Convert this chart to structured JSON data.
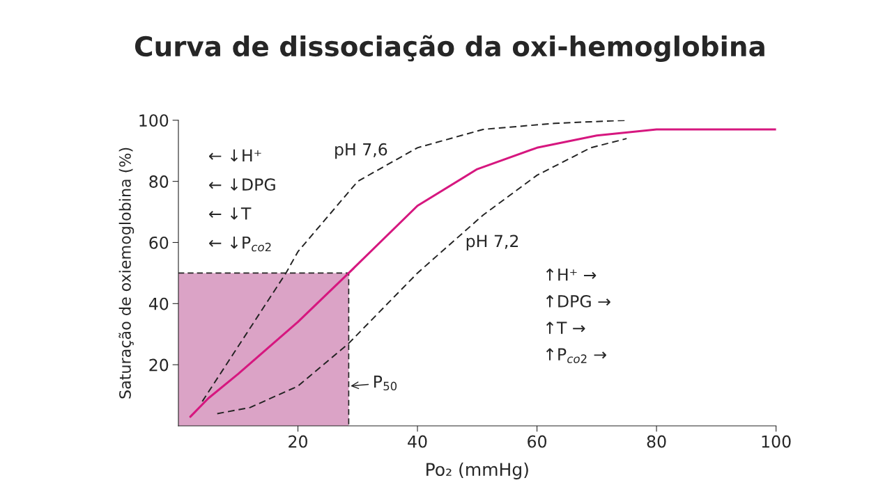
{
  "chart_data": {
    "type": "line",
    "title": "Curva de dissociação da oxi-hemoglobina",
    "xlabel": "Po₂ (mmHg)",
    "ylabel": "Saturação de oxiemoglobina (%)",
    "xlim": [
      0,
      100
    ],
    "ylim": [
      0,
      100
    ],
    "xticks": [
      20,
      40,
      60,
      80,
      100
    ],
    "yticks": [
      20,
      40,
      60,
      80,
      100
    ],
    "grid": false,
    "legend": false,
    "series": [
      {
        "type": "area",
        "color": "#dba3c6",
        "x": [
          0,
          28.5
        ],
        "values": [
          50,
          50
        ],
        "line_style": "dashed"
      },
      {
        "color": "#d6177f",
        "line_style": "solid",
        "x": [
          2,
          5,
          10,
          20,
          28.5,
          40,
          50,
          60,
          70,
          80,
          90,
          100
        ],
        "values": [
          3,
          9,
          17,
          34,
          50,
          72,
          84,
          91,
          95,
          97,
          97,
          97
        ]
      },
      {
        "color": "#222222",
        "line_style": "dashed",
        "x": [
          4,
          10,
          18,
          20,
          30,
          40,
          51,
          63,
          75
        ],
        "values": [
          8,
          26,
          50,
          57,
          80,
          91,
          97,
          99,
          100
        ]
      },
      {
        "color": "#222222",
        "line_style": "dashed",
        "x": [
          6.5,
          12,
          20,
          28.5,
          40,
          51,
          60,
          69,
          75
        ],
        "values": [
          4,
          6,
          13,
          27,
          50,
          69,
          82,
          91,
          94
        ]
      }
    ],
    "annotations": [
      "pH 7,6",
      "pH 7,2",
      {
        "text": "P$_{50}$",
        "x": 28.5,
        "y": 13
      },
      "← ↓H⁺",
      "← ↓DPG",
      "← ↓T",
      "← ↓P$_{co2}$",
      "↑H⁺ →",
      "↑DPG →",
      "↑T →",
      "↑P$_{co2}$ →"
    ]
  }
}
